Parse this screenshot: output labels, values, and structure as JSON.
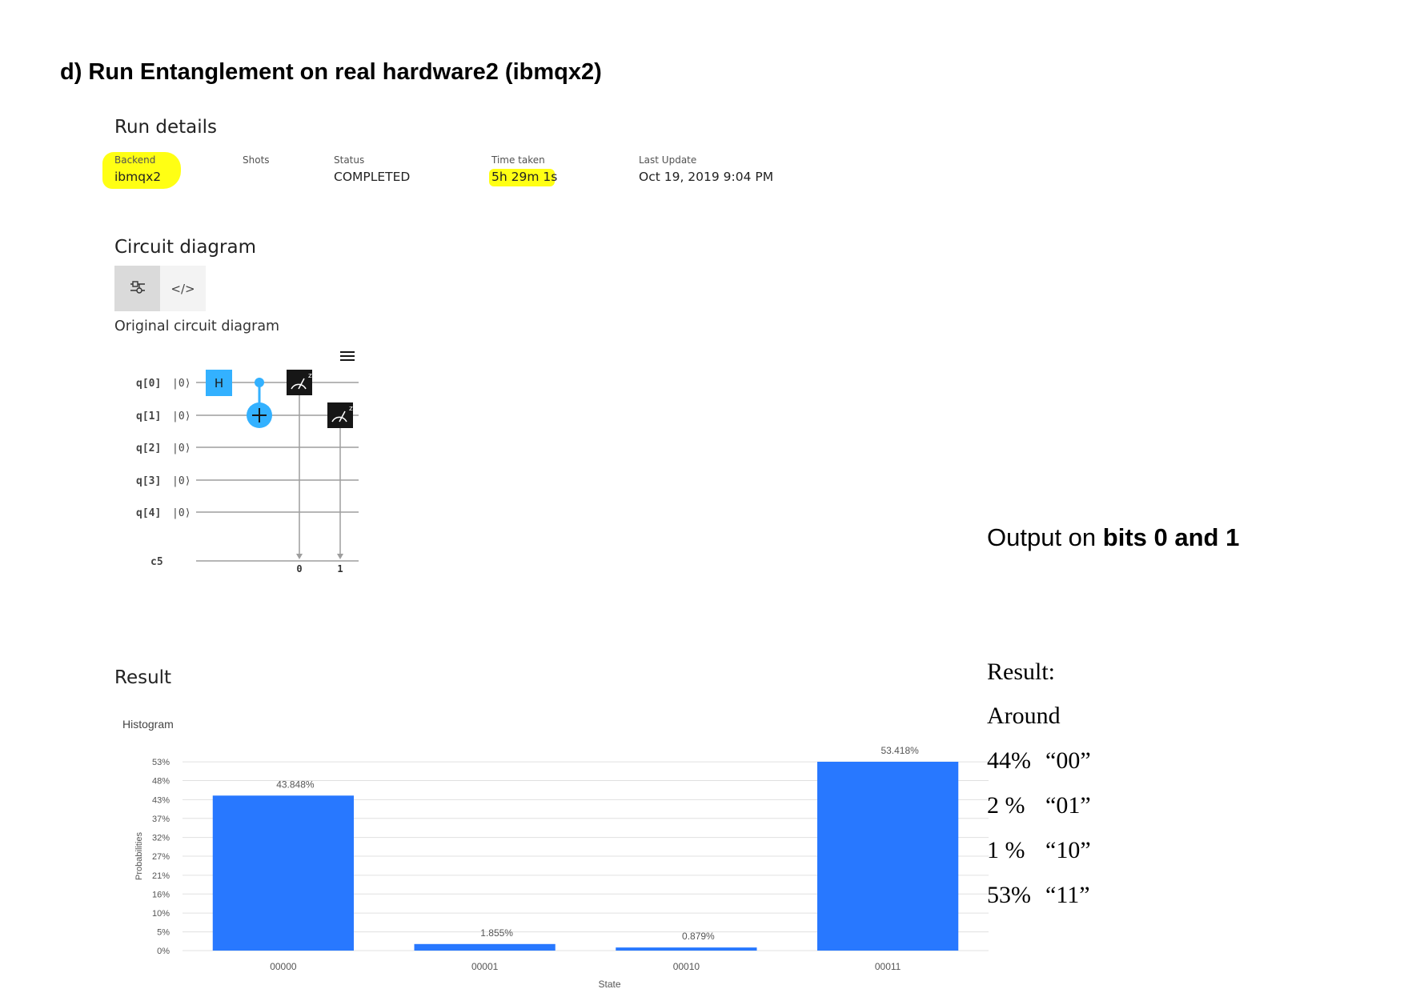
{
  "heading": "d) Run Entanglement on real hardware2 (ibmqx2)",
  "run_details": {
    "title": "Run details",
    "fields": [
      {
        "label": "Backend",
        "value": "ibmqx2",
        "highlighted": true
      },
      {
        "label": "Shots",
        "value": ""
      },
      {
        "label": "Status",
        "value": "COMPLETED"
      },
      {
        "label": "Time taken",
        "value": "5h 29m 1s",
        "highlighted": true
      },
      {
        "label": "Last Update",
        "value": "Oct 19, 2019 9:04 PM"
      }
    ]
  },
  "circuit": {
    "title": "Circuit diagram",
    "toggle": {
      "active": "visual-circuit-icon",
      "inactive": "code-icon",
      "code_glyph": "</>"
    },
    "subtitle": "Original circuit diagram",
    "menu_icon": "hamburger-menu-icon",
    "qubits": [
      {
        "label": "q[0]",
        "init": "|0⟩"
      },
      {
        "label": "q[1]",
        "init": "|0⟩"
      },
      {
        "label": "q[2]",
        "init": "|0⟩"
      },
      {
        "label": "q[3]",
        "init": "|0⟩"
      },
      {
        "label": "q[4]",
        "init": "|0⟩"
      }
    ],
    "classical_register": "c5",
    "gates": {
      "hadamard": "H",
      "measure_superscript": "z",
      "measure_targets": [
        "0",
        "1"
      ]
    },
    "colors": {
      "gate_blue": "#33b1ff",
      "measure_dark": "#161616",
      "wire": "#9e9e9e"
    }
  },
  "result": {
    "title": "Result",
    "chart_title": "Histogram"
  },
  "chart_data": {
    "type": "bar",
    "title": "Histogram",
    "xlabel": "State",
    "ylabel": "Probabilities",
    "categories": [
      "00000",
      "00001",
      "00010",
      "00011"
    ],
    "values": [
      43.848,
      1.855,
      0.879,
      53.418
    ],
    "value_labels": [
      "43.848%",
      "1.855%",
      "0.879%",
      "53.418%"
    ],
    "yticks": [
      "0%",
      "5%",
      "10%",
      "16%",
      "21%",
      "27%",
      "32%",
      "37%",
      "43%",
      "48%",
      "53%"
    ],
    "ytick_values": [
      0,
      5.3,
      10.6,
      16,
      21.3,
      26.7,
      32,
      37.4,
      42.7,
      48.1,
      53.4
    ],
    "ylim": [
      0,
      53.418
    ],
    "grid": true,
    "bar_color": "#2878ff"
  },
  "side_notes": {
    "output_prefix": "Output on ",
    "output_bold": "bits 0 and 1",
    "result_label": "Result:",
    "around_label": "Around",
    "rows": [
      {
        "pct": "44%",
        "state": "“00”"
      },
      {
        "pct": "2 %",
        "state": "“01”"
      },
      {
        "pct": "1 %",
        "state": "“10”"
      },
      {
        "pct": "53%",
        "state": "“11”"
      }
    ]
  }
}
